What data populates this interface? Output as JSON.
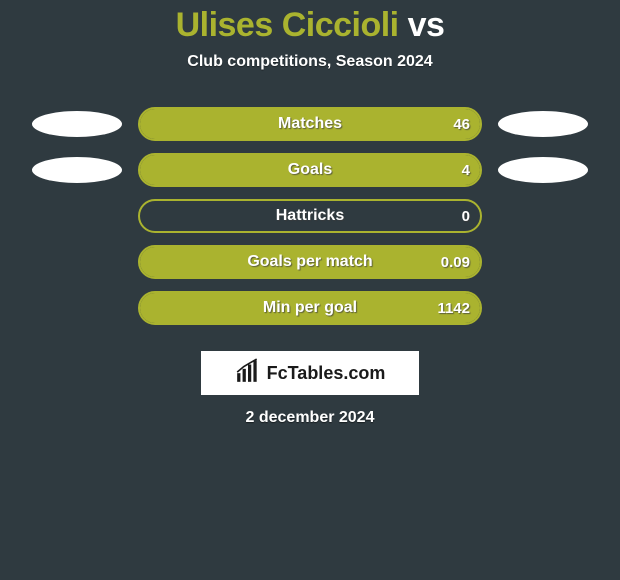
{
  "title": {
    "player": "Ulises Ciccioli",
    "vs": "vs"
  },
  "subtitle": "Club competitions, Season 2024",
  "chart": {
    "bar_bg_color": "#2f3a40",
    "bar_border_color": "#aab32f",
    "bar_fill_color": "#aab32f",
    "text_color": "#ffffff",
    "oval_color": "#ffffff",
    "rows": [
      {
        "label": "Matches",
        "value": "46",
        "fill_pct": 100,
        "left_oval": true,
        "right_oval": true
      },
      {
        "label": "Goals",
        "value": "4",
        "fill_pct": 100,
        "left_oval": true,
        "right_oval": true
      },
      {
        "label": "Hattricks",
        "value": "0",
        "fill_pct": 0,
        "left_oval": false,
        "right_oval": false
      },
      {
        "label": "Goals per match",
        "value": "0.09",
        "fill_pct": 100,
        "left_oval": false,
        "right_oval": false
      },
      {
        "label": "Min per goal",
        "value": "1142",
        "fill_pct": 100,
        "left_oval": false,
        "right_oval": false
      }
    ]
  },
  "logo_text": "FcTables.com",
  "date": "2 december 2024"
}
